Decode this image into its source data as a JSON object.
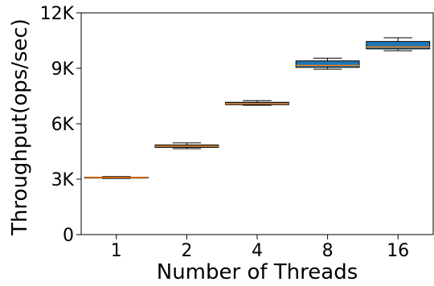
{
  "chart_data": {
    "type": "box",
    "title": "",
    "xlabel": "Number of Threads",
    "ylabel": "Throughput(ops/sec)",
    "categories": [
      "1",
      "2",
      "4",
      "8",
      "16"
    ],
    "ylim": [
      0,
      12000
    ],
    "yticks": [
      0,
      3000,
      6000,
      9000,
      12000
    ],
    "ytick_labels": [
      "0",
      "3K",
      "6K",
      "9K",
      "12K"
    ],
    "grid": false,
    "boxes": [
      {
        "category": "1",
        "whisker_low": 3040,
        "q1": 3060,
        "median": 3090,
        "q3": 3110,
        "whisker_high": 3140
      },
      {
        "category": "2",
        "whisker_low": 4650,
        "q1": 4720,
        "median": 4790,
        "q3": 4850,
        "whisker_high": 4960
      },
      {
        "category": "4",
        "whisker_low": 7000,
        "q1": 7030,
        "median": 7080,
        "q3": 7160,
        "whisker_high": 7250
      },
      {
        "category": "8",
        "whisker_low": 8950,
        "q1": 9050,
        "median": 9150,
        "q3": 9400,
        "whisker_high": 9550
      },
      {
        "category": "16",
        "whisker_low": 9950,
        "q1": 10050,
        "median": 10150,
        "q3": 10450,
        "whisker_high": 10650
      }
    ],
    "colors": {
      "box_fill": "#1f77b4",
      "median": "#ff7f0e",
      "edge": "#000000"
    }
  }
}
